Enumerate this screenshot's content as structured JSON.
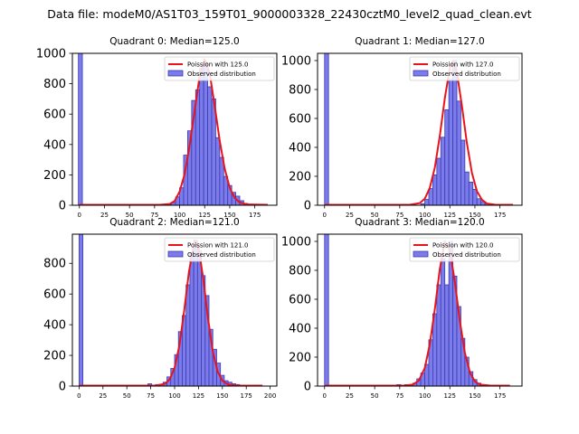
{
  "figure": {
    "suptitle": "Data file: modeM0/AS1T03_159T01_9000003328_22430cztM0_level2_quad_clean.evt"
  },
  "colors": {
    "bar_fill": "#7b7bea",
    "bar_edge": "#3a3ab5",
    "curve": "#e8141b",
    "axis": "#000000",
    "background": "#ffffff"
  },
  "chart_data": [
    {
      "type": "bar",
      "title": "Quadrant 0: Median=125.0",
      "xlim": [
        -7,
        197
      ],
      "ylim": [
        0,
        1000
      ],
      "xticks": [
        0,
        25,
        50,
        75,
        100,
        125,
        150,
        175
      ],
      "yticks": [
        0,
        200,
        400,
        600,
        800,
        1000
      ],
      "legend": {
        "position": "top-right",
        "entries": [
          "Poission with 125.0",
          "Observed distribution"
        ]
      },
      "bar_width": 4,
      "bars": [
        {
          "x": -1,
          "y": 1000
        },
        {
          "x": 88,
          "y": 5
        },
        {
          "x": 92,
          "y": 18
        },
        {
          "x": 96,
          "y": 55
        },
        {
          "x": 100,
          "y": 115
        },
        {
          "x": 104,
          "y": 330
        },
        {
          "x": 108,
          "y": 490
        },
        {
          "x": 112,
          "y": 690
        },
        {
          "x": 116,
          "y": 760
        },
        {
          "x": 120,
          "y": 900
        },
        {
          "x": 124,
          "y": 940
        },
        {
          "x": 128,
          "y": 780
        },
        {
          "x": 132,
          "y": 700
        },
        {
          "x": 136,
          "y": 445
        },
        {
          "x": 140,
          "y": 315
        },
        {
          "x": 144,
          "y": 190
        },
        {
          "x": 148,
          "y": 130
        },
        {
          "x": 152,
          "y": 85
        },
        {
          "x": 156,
          "y": 60
        },
        {
          "x": 160,
          "y": 30
        },
        {
          "x": 164,
          "y": 12
        },
        {
          "x": 168,
          "y": 6
        }
      ],
      "poisson_curve": {
        "mean": 125.0,
        "peak": 960,
        "x_range": [
          0,
          188
        ],
        "points": [
          {
            "x": 0,
            "y": 3
          },
          {
            "x": 80,
            "y": 3
          },
          {
            "x": 90,
            "y": 8
          },
          {
            "x": 95,
            "y": 28
          },
          {
            "x": 100,
            "y": 90
          },
          {
            "x": 105,
            "y": 205
          },
          {
            "x": 110,
            "y": 395
          },
          {
            "x": 115,
            "y": 625
          },
          {
            "x": 120,
            "y": 850
          },
          {
            "x": 125,
            "y": 960
          },
          {
            "x": 130,
            "y": 870
          },
          {
            "x": 135,
            "y": 655
          },
          {
            "x": 140,
            "y": 425
          },
          {
            "x": 145,
            "y": 240
          },
          {
            "x": 150,
            "y": 115
          },
          {
            "x": 155,
            "y": 48
          },
          {
            "x": 160,
            "y": 18
          },
          {
            "x": 168,
            "y": 5
          },
          {
            "x": 188,
            "y": 3
          }
        ]
      }
    },
    {
      "type": "bar",
      "title": "Quadrant 1: Median=127.0",
      "xlim": [
        -7,
        197
      ],
      "ylim": [
        0,
        1050
      ],
      "xticks": [
        0,
        25,
        50,
        75,
        100,
        125,
        150,
        175
      ],
      "yticks": [
        0,
        200,
        400,
        600,
        800,
        1000
      ],
      "legend": {
        "position": "top-right",
        "entries": [
          "Poission with 127.0",
          "Observed distribution"
        ]
      },
      "bar_width": 4,
      "bars": [
        {
          "x": 0,
          "y": 1050
        },
        {
          "x": 96,
          "y": 10
        },
        {
          "x": 100,
          "y": 40
        },
        {
          "x": 104,
          "y": 115
        },
        {
          "x": 108,
          "y": 210
        },
        {
          "x": 112,
          "y": 325
        },
        {
          "x": 116,
          "y": 470
        },
        {
          "x": 120,
          "y": 660
        },
        {
          "x": 124,
          "y": 870
        },
        {
          "x": 128,
          "y": 1000
        },
        {
          "x": 132,
          "y": 720
        },
        {
          "x": 136,
          "y": 450
        },
        {
          "x": 140,
          "y": 230
        },
        {
          "x": 144,
          "y": 160
        },
        {
          "x": 148,
          "y": 110
        },
        {
          "x": 152,
          "y": 45
        },
        {
          "x": 156,
          "y": 25
        },
        {
          "x": 160,
          "y": 10
        }
      ],
      "poisson_curve": {
        "mean": 127.0,
        "peak": 995,
        "x_range": [
          0,
          188
        ],
        "points": [
          {
            "x": 0,
            "y": 3
          },
          {
            "x": 85,
            "y": 3
          },
          {
            "x": 95,
            "y": 15
          },
          {
            "x": 100,
            "y": 45
          },
          {
            "x": 105,
            "y": 120
          },
          {
            "x": 110,
            "y": 260
          },
          {
            "x": 115,
            "y": 480
          },
          {
            "x": 120,
            "y": 740
          },
          {
            "x": 125,
            "y": 950
          },
          {
            "x": 128,
            "y": 995
          },
          {
            "x": 132,
            "y": 920
          },
          {
            "x": 137,
            "y": 690
          },
          {
            "x": 142,
            "y": 430
          },
          {
            "x": 147,
            "y": 225
          },
          {
            "x": 152,
            "y": 98
          },
          {
            "x": 157,
            "y": 38
          },
          {
            "x": 162,
            "y": 12
          },
          {
            "x": 170,
            "y": 4
          },
          {
            "x": 188,
            "y": 3
          }
        ]
      }
    },
    {
      "type": "bar",
      "title": "Quadrant 2: Median=121.0",
      "xlim": [
        -7,
        207
      ],
      "ylim": [
        0,
        990
      ],
      "xticks": [
        0,
        25,
        50,
        75,
        100,
        125,
        150,
        175,
        200
      ],
      "yticks": [
        0,
        200,
        400,
        600,
        800
      ],
      "legend": {
        "position": "top-right",
        "entries": [
          "Poission with 121.0",
          "Observed distribution"
        ]
      },
      "bar_width": 4,
      "bars": [
        {
          "x": 0,
          "y": 990
        },
        {
          "x": 72,
          "y": 15
        },
        {
          "x": 80,
          "y": 10
        },
        {
          "x": 84,
          "y": 10
        },
        {
          "x": 88,
          "y": 25
        },
        {
          "x": 92,
          "y": 60
        },
        {
          "x": 96,
          "y": 115
        },
        {
          "x": 100,
          "y": 205
        },
        {
          "x": 104,
          "y": 355
        },
        {
          "x": 108,
          "y": 460
        },
        {
          "x": 112,
          "y": 660
        },
        {
          "x": 116,
          "y": 870
        },
        {
          "x": 120,
          "y": 950
        },
        {
          "x": 124,
          "y": 880
        },
        {
          "x": 128,
          "y": 720
        },
        {
          "x": 132,
          "y": 590
        },
        {
          "x": 136,
          "y": 370
        },
        {
          "x": 140,
          "y": 240
        },
        {
          "x": 144,
          "y": 150
        },
        {
          "x": 148,
          "y": 70
        },
        {
          "x": 152,
          "y": 35
        },
        {
          "x": 156,
          "y": 25
        },
        {
          "x": 160,
          "y": 15
        },
        {
          "x": 164,
          "y": 10
        },
        {
          "x": 172,
          "y": 5
        }
      ],
      "poisson_curve": {
        "mean": 121.0,
        "peak": 945,
        "x_range": [
          0,
          192
        ],
        "points": [
          {
            "x": 0,
            "y": 3
          },
          {
            "x": 80,
            "y": 3
          },
          {
            "x": 90,
            "y": 15
          },
          {
            "x": 95,
            "y": 45
          },
          {
            "x": 100,
            "y": 120
          },
          {
            "x": 105,
            "y": 265
          },
          {
            "x": 110,
            "y": 490
          },
          {
            "x": 115,
            "y": 745
          },
          {
            "x": 121,
            "y": 945
          },
          {
            "x": 125,
            "y": 905
          },
          {
            "x": 130,
            "y": 700
          },
          {
            "x": 135,
            "y": 440
          },
          {
            "x": 140,
            "y": 225
          },
          {
            "x": 145,
            "y": 95
          },
          {
            "x": 150,
            "y": 35
          },
          {
            "x": 156,
            "y": 10
          },
          {
            "x": 165,
            "y": 4
          },
          {
            "x": 192,
            "y": 3
          }
        ]
      }
    },
    {
      "type": "bar",
      "title": "Quadrant 3: Median=120.0",
      "xlim": [
        -7,
        197
      ],
      "ylim": [
        0,
        1050
      ],
      "xticks": [
        0,
        25,
        50,
        75,
        100,
        125,
        150,
        175
      ],
      "yticks": [
        0,
        200,
        400,
        600,
        800,
        1000
      ],
      "legend": {
        "position": "top-right",
        "entries": [
          "Poission with 120.0",
          "Observed distribution"
        ]
      },
      "bar_width": 4,
      "bars": [
        {
          "x": 0,
          "y": 1050
        },
        {
          "x": 72,
          "y": 10
        },
        {
          "x": 80,
          "y": 10
        },
        {
          "x": 88,
          "y": 20
        },
        {
          "x": 92,
          "y": 50
        },
        {
          "x": 96,
          "y": 90
        },
        {
          "x": 100,
          "y": 150
        },
        {
          "x": 104,
          "y": 320
        },
        {
          "x": 108,
          "y": 500
        },
        {
          "x": 112,
          "y": 700
        },
        {
          "x": 116,
          "y": 880
        },
        {
          "x": 120,
          "y": 700
        },
        {
          "x": 124,
          "y": 1000
        },
        {
          "x": 128,
          "y": 760
        },
        {
          "x": 132,
          "y": 550
        },
        {
          "x": 136,
          "y": 330
        },
        {
          "x": 140,
          "y": 200
        },
        {
          "x": 144,
          "y": 100
        },
        {
          "x": 148,
          "y": 45
        },
        {
          "x": 152,
          "y": 20
        },
        {
          "x": 156,
          "y": 10
        }
      ],
      "poisson_curve": {
        "mean": 120.0,
        "peak": 1000,
        "x_range": [
          0,
          185
        ],
        "points": [
          {
            "x": 0,
            "y": 3
          },
          {
            "x": 80,
            "y": 3
          },
          {
            "x": 88,
            "y": 10
          },
          {
            "x": 94,
            "y": 38
          },
          {
            "x": 100,
            "y": 125
          },
          {
            "x": 105,
            "y": 290
          },
          {
            "x": 110,
            "y": 530
          },
          {
            "x": 115,
            "y": 810
          },
          {
            "x": 120,
            "y": 1000
          },
          {
            "x": 125,
            "y": 940
          },
          {
            "x": 130,
            "y": 720
          },
          {
            "x": 135,
            "y": 450
          },
          {
            "x": 140,
            "y": 230
          },
          {
            "x": 145,
            "y": 95
          },
          {
            "x": 150,
            "y": 32
          },
          {
            "x": 155,
            "y": 10
          },
          {
            "x": 165,
            "y": 4
          },
          {
            "x": 185,
            "y": 3
          }
        ]
      }
    }
  ]
}
